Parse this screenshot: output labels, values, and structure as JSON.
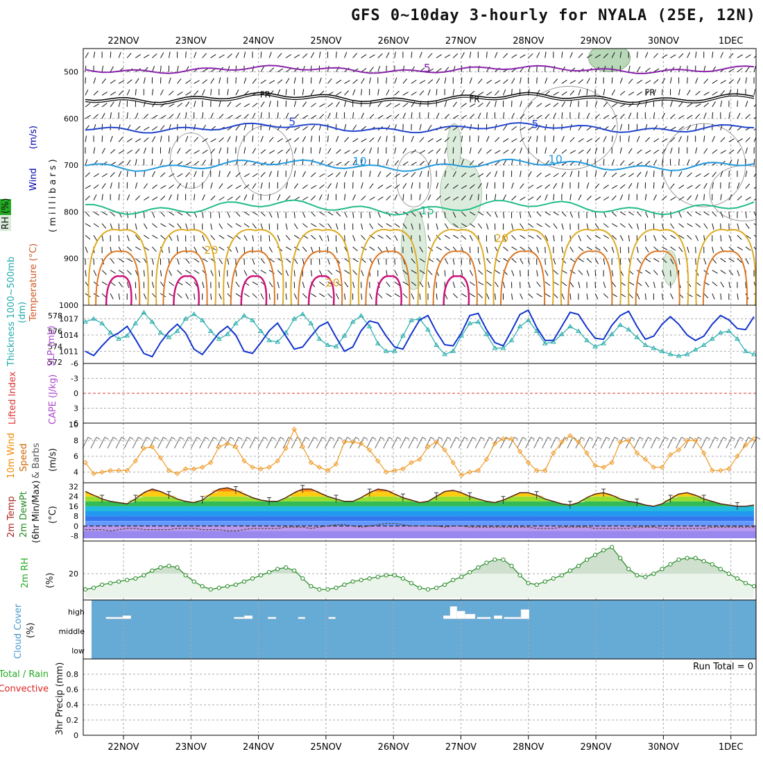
{
  "title": "GFS 0~10day 3-hourly for NYALA (25E, 12N)",
  "colors": {
    "wind": "#0000aa",
    "temperature": "#cc2222",
    "rh": "#22aa22",
    "thickness": "#22aaaa",
    "slp": "#aa44cc",
    "lifted": "#dd3333",
    "cape": "#aa44cc",
    "wind10": "#ee8800",
    "speed": "#cc6600",
    "barbs": "#555555",
    "temp2m": "#aa2222",
    "dewpt": "#228822",
    "rh2m": "#22aa22",
    "cloud": "#4499cc",
    "precip_total": "#22aa22",
    "precip_conv": "#dd2222",
    "cloud_fill": "#66aad6"
  },
  "chart_data": [
    {
      "type": "contour",
      "title": "",
      "ylabel_parts": [
        "Wind",
        "(m/s)"
      ],
      "ylabel_temp": "Temperature (°C)",
      "ylabel_rh": "RH (%)",
      "ylabel_unit": "(millibars)",
      "yticks": [
        "500",
        "600",
        "700",
        "800",
        "900",
        "1000"
      ],
      "x_dates": [
        "22NOV",
        "23NOV",
        "24NOV",
        "25NOV",
        "26NOV",
        "27NOV",
        "28NOV",
        "29NOV",
        "30NOV",
        "1DEC"
      ],
      "contour_labels": [
        {
          "text": "5",
          "level": 500,
          "day": 4.5,
          "color": "#8822aa"
        },
        {
          "text": "FR",
          "level": 555,
          "day": 2.1,
          "color": "#000000"
        },
        {
          "text": "FR",
          "level": 565,
          "day": 5.2,
          "color": "#000000"
        },
        {
          "text": "FR",
          "level": 550,
          "day": 7.8,
          "color": "#000000"
        },
        {
          "text": "5",
          "level": 615,
          "day": 2.5,
          "color": "#2244cc"
        },
        {
          "text": "5",
          "level": 620,
          "day": 6.1,
          "color": "#2244cc"
        },
        {
          "text": "10",
          "level": 700,
          "day": 3.5,
          "color": "#2299dd"
        },
        {
          "text": "10",
          "level": 695,
          "day": 6.4,
          "color": "#2299dd"
        },
        {
          "text": "15",
          "level": 805,
          "day": 4.5,
          "color": "#22bb88"
        },
        {
          "text": "20",
          "level": 890,
          "day": 1.3,
          "color": "#ddaa22"
        },
        {
          "text": "20",
          "level": 865,
          "day": 5.6,
          "color": "#ddaa22"
        },
        {
          "text": "20",
          "level": 960,
          "day": 3.1,
          "color": "#ddaa22"
        }
      ],
      "isotherm_levels": [
        {
          "name": "-5C",
          "mean": 495,
          "amp": 8,
          "color": "#8822aa"
        },
        {
          "name": "0C",
          "mean": 555,
          "amp": 10,
          "color": "#000000"
        },
        {
          "name": "5C",
          "mean": 620,
          "amp": 10,
          "color": "#2244cc"
        },
        {
          "name": "10C",
          "mean": 700,
          "amp": 12,
          "color": "#2299dd"
        },
        {
          "name": "15C",
          "mean": 790,
          "amp": 15,
          "color": "#22bb88"
        }
      ]
    },
    {
      "type": "line",
      "ylabel_left": "Thickness 1000~500mb (dm)",
      "ylabel_right": "SLP (mb)",
      "yticks_thickness": [
        "572",
        "574",
        "576",
        "578"
      ],
      "yticks_slp": [
        "1011",
        "1014",
        "1017"
      ],
      "series": [
        {
          "name": "thickness",
          "values": [
            577.2,
            577.6,
            577.0,
            575.8,
            575.0,
            575.4,
            577.0,
            578.4,
            577.2,
            575.8,
            575.2,
            576.0,
            577.6,
            578.2,
            577.4,
            576.0,
            575.0,
            575.6,
            577.0,
            578.0,
            577.4,
            576.0,
            574.8,
            574.6,
            575.8,
            577.6,
            578.2,
            577.0,
            575.0,
            574.2,
            574.0,
            575.4,
            577.2,
            578.0,
            576.6,
            574.4,
            573.4,
            573.4,
            575.4,
            577.4,
            577.6,
            576.2,
            574.2,
            573.0,
            573.4,
            575.4,
            577.0,
            577.2,
            575.6,
            573.8,
            573.8,
            574.8,
            576.6,
            577.4,
            576.0,
            574.4,
            574.6,
            575.6,
            576.6,
            576.0,
            574.8,
            574.0,
            574.4,
            575.6,
            576.8,
            576.2,
            575.2,
            574.2,
            573.8,
            573.4,
            573.0,
            572.8,
            573.0,
            573.6,
            574.2,
            575.0,
            575.8,
            576.0,
            575.0,
            573.4,
            573.0
          ]
        },
        {
          "name": "slp",
          "values": [
            1011.0,
            1010.2,
            1012.0,
            1013.6,
            1014.4,
            1015.6,
            1013.2,
            1010.6,
            1010.0,
            1012.6,
            1014.6,
            1016.0,
            1014.4,
            1011.4,
            1010.4,
            1012.4,
            1014.4,
            1015.6,
            1014.0,
            1011.0,
            1010.6,
            1012.6,
            1014.8,
            1016.2,
            1013.8,
            1011.4,
            1011.8,
            1013.8,
            1015.6,
            1016.4,
            1013.6,
            1011.0,
            1011.8,
            1014.8,
            1016.6,
            1016.2,
            1013.8,
            1011.8,
            1011.4,
            1014.2,
            1016.8,
            1017.6,
            1014.6,
            1012.2,
            1012.0,
            1014.4,
            1017.6,
            1018.0,
            1015.0,
            1012.6,
            1012.0,
            1014.8,
            1017.8,
            1018.6,
            1015.4,
            1013.0,
            1013.0,
            1015.6,
            1018.2,
            1017.8,
            1015.4,
            1013.4,
            1013.2,
            1015.8,
            1017.6,
            1018.4,
            1015.6,
            1013.2,
            1013.8,
            1016.0,
            1017.4,
            1016.0,
            1014.0,
            1013.0,
            1013.8,
            1016.0,
            1017.6,
            1016.8,
            1015.2,
            1015.0,
            1017.4
          ]
        }
      ]
    },
    {
      "type": "line",
      "ylabel_left": "Lifted Index",
      "ylabel_right": "CAPE (J/kg)",
      "yticks": [
        "6",
        "3",
        "0",
        "-3",
        "-6"
      ],
      "reference_line": 0
    },
    {
      "type": "line",
      "ylabel_parts": [
        "10m Wind",
        "Speed",
        "& Barbs",
        "(m/s)"
      ],
      "yticks": [
        "4",
        "6",
        "8",
        "10"
      ],
      "series": [
        {
          "name": "wind_speed",
          "values": [
            5.2,
            3.8,
            4.0,
            4.2,
            4.2,
            4.2,
            5.4,
            7.0,
            7.2,
            5.8,
            4.2,
            3.8,
            4.4,
            4.4,
            4.6,
            5.2,
            7.2,
            7.6,
            7.2,
            5.4,
            4.6,
            4.4,
            4.6,
            5.4,
            7.0,
            9.4,
            7.2,
            5.2,
            4.6,
            4.2,
            5.0,
            7.8,
            7.8,
            7.6,
            6.8,
            5.4,
            4.0,
            4.2,
            4.4,
            5.2,
            5.6,
            7.2,
            7.8,
            6.8,
            5.2,
            3.6,
            4.0,
            4.2,
            5.6,
            7.6,
            8.2,
            8.2,
            6.6,
            5.2,
            4.2,
            4.2,
            6.4,
            7.8,
            8.6,
            7.8,
            6.4,
            4.8,
            4.6,
            5.2,
            7.8,
            8.0,
            6.4,
            5.6,
            4.6,
            4.6,
            6.2,
            6.8,
            8.0,
            8.0,
            6.4,
            4.2,
            4.2,
            4.4,
            6.0,
            7.4,
            8.2
          ]
        }
      ]
    },
    {
      "type": "area",
      "ylabel_parts": [
        "2m Temp",
        "2m DewPt",
        "(6hr Min/Max)",
        "(°C)"
      ],
      "yticks": [
        "-8",
        "0",
        "8",
        "16",
        "24",
        "32"
      ],
      "series": [
        {
          "name": "temp_2m",
          "values": [
            28,
            25,
            22,
            20,
            19,
            18,
            22,
            27,
            30,
            28,
            25,
            22,
            20,
            19,
            21,
            26,
            30,
            31,
            29,
            26,
            23,
            21,
            20,
            20,
            23,
            27,
            30,
            30,
            27,
            24,
            22,
            20,
            20,
            23,
            27,
            30,
            29,
            26,
            23,
            21,
            19,
            20,
            24,
            28,
            29,
            27,
            24,
            22,
            20,
            19,
            21,
            24,
            27,
            27,
            25,
            22,
            20,
            18,
            17,
            19,
            23,
            26,
            27,
            25,
            22,
            20,
            19,
            17,
            16,
            18,
            22,
            26,
            27,
            25,
            22,
            20,
            18,
            17,
            16,
            16,
            17
          ]
        },
        {
          "name": "dewpt_2m",
          "values": [
            -3,
            -3,
            -3,
            -4,
            -3,
            -2,
            -2,
            -3,
            -3,
            -3,
            -3,
            -2,
            -2,
            -2,
            -3,
            -3,
            -3,
            -4,
            -4,
            -3,
            -2,
            -2,
            -2,
            -2,
            -1,
            -1,
            -1,
            -2,
            -1,
            0,
            1,
            1,
            0,
            -1,
            0,
            1,
            2,
            2,
            1,
            0,
            0,
            0,
            0,
            -1,
            0,
            0,
            -1,
            -1,
            -1,
            -1,
            -1,
            -1,
            -1,
            -1,
            -2,
            -2,
            -2,
            -1,
            -1,
            -1,
            -1,
            -2,
            -2,
            -2,
            -2,
            -2,
            -1,
            -1,
            -1,
            -2,
            -2,
            -2,
            -2,
            -2,
            -2,
            -1,
            -1,
            -1,
            -1,
            -1,
            -1
          ]
        }
      ]
    },
    {
      "type": "area",
      "ylabel_parts": [
        "2m RH",
        "(%)"
      ],
      "yticks": [
        "20"
      ],
      "series": [
        {
          "name": "rh_2m",
          "values": [
            10,
            11,
            13,
            14,
            15,
            16,
            17,
            19,
            22,
            24,
            25,
            24,
            19,
            15,
            12,
            10,
            11,
            12,
            13,
            15,
            17,
            19,
            21,
            23,
            24,
            22,
            17,
            12,
            10,
            10,
            11,
            13,
            15,
            16,
            17,
            18,
            19,
            19,
            17,
            14,
            11,
            10,
            11,
            13,
            16,
            18,
            21,
            24,
            27,
            29,
            29,
            25,
            19,
            14,
            13,
            15,
            17,
            19,
            22,
            25,
            29,
            32,
            35,
            37,
            30,
            23,
            19,
            18,
            20,
            23,
            26,
            29,
            30,
            30,
            28,
            26,
            23,
            20,
            17,
            14,
            12
          ]
        }
      ]
    },
    {
      "type": "bar",
      "ylabel_parts": [
        "Cloud Cover",
        "(%)"
      ],
      "categories": [
        "high",
        "middle",
        "low"
      ],
      "high_bars": [
        {
          "day": 0.1,
          "width": 0.25,
          "value": 1
        },
        {
          "day": 0.35,
          "width": 0.12,
          "value": 2
        },
        {
          "day": 2.0,
          "width": 0.15,
          "value": 1
        },
        {
          "day": 2.15,
          "width": 0.12,
          "value": 2
        },
        {
          "day": 2.5,
          "width": 0.12,
          "value": 1
        },
        {
          "day": 2.95,
          "width": 0.1,
          "value": 1
        },
        {
          "day": 3.4,
          "width": 0.1,
          "value": 1
        },
        {
          "day": 5.1,
          "width": 0.12,
          "value": 2
        },
        {
          "day": 5.2,
          "width": 0.1,
          "value": 8
        },
        {
          "day": 5.3,
          "width": 0.12,
          "value": 5
        },
        {
          "day": 5.42,
          "width": 0.15,
          "value": 3
        },
        {
          "day": 5.6,
          "width": 0.2,
          "value": 1
        },
        {
          "day": 5.85,
          "width": 0.12,
          "value": 2
        },
        {
          "day": 6.0,
          "width": 0.35,
          "value": 1
        },
        {
          "day": 6.25,
          "width": 0.12,
          "value": 6
        }
      ]
    },
    {
      "type": "bar",
      "ylabel_left": "Total / Rain",
      "ylabel_conv": "Convective",
      "ylabel_right": "3hr Precip (mm)",
      "yticks": [
        "0",
        "0.2",
        "0.4",
        "0.6",
        "0.8"
      ],
      "run_total_label": "Run Total = 0",
      "values": []
    }
  ]
}
